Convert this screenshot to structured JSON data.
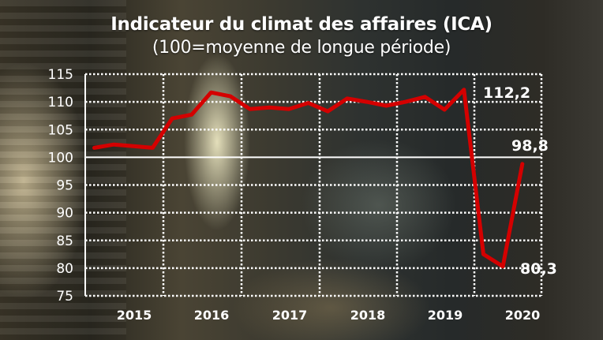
{
  "header": {
    "title": "Indicateur du climat des affaires (ICA)",
    "subtitle": "(100=moyenne de longue période)"
  },
  "colors": {
    "line": "#d40000",
    "grid": "#ffffff",
    "text": "#ffffff"
  },
  "axes": {
    "y_ticks": [
      "115",
      "110",
      "105",
      "100",
      "95",
      "90",
      "85",
      "80",
      "75"
    ],
    "x_ticks": [
      "2015",
      "2016",
      "2017",
      "2018",
      "2019",
      "2020"
    ]
  },
  "annotations": {
    "max_label": "112,2",
    "min_label": "80,3",
    "last_label": "98,8"
  },
  "chart_data": {
    "type": "line",
    "title": "Indicateur du climat des affaires (ICA)",
    "subtitle": "(100=moyenne de longue période)",
    "xlabel": "",
    "ylabel": "",
    "ylim": [
      75,
      115
    ],
    "y_ticks": [
      75,
      80,
      85,
      90,
      95,
      100,
      105,
      110,
      115
    ],
    "x_tick_labels": [
      "2015",
      "2016",
      "2017",
      "2018",
      "2019",
      "2020"
    ],
    "grid": "dotted, white; solid reference line at 100",
    "legend": "none",
    "frequency": "quarterly",
    "x": [
      "2014T3",
      "2014T4",
      "2015T1",
      "2015T2",
      "2015T3",
      "2015T4",
      "2016T1",
      "2016T2",
      "2016T3",
      "2016T4",
      "2017T1",
      "2017T2",
      "2017T3",
      "2017T4",
      "2018T1",
      "2018T2",
      "2018T3",
      "2018T4",
      "2019T1",
      "2019T2",
      "2019T3",
      "2019T4",
      "2020T1"
    ],
    "series": [
      {
        "name": "ICA",
        "color": "#d40000",
        "values": [
          101.7,
          102.3,
          102.0,
          101.7,
          107.0,
          107.7,
          111.7,
          111.0,
          108.7,
          109.0,
          108.7,
          109.8,
          108.3,
          110.6,
          110.0,
          109.3,
          110.0,
          110.9,
          108.6,
          112.2,
          82.5,
          80.3,
          98.8
        ]
      }
    ],
    "annotations": [
      {
        "text": "112,2",
        "value": 112.2
      },
      {
        "text": "98,8",
        "value": 98.8
      },
      {
        "text": "80,3",
        "value": 80.3
      }
    ]
  }
}
